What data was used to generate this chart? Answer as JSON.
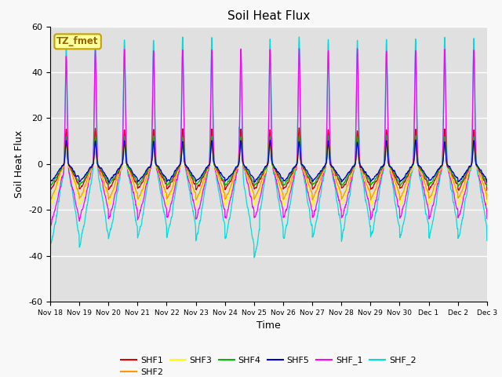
{
  "title": "Soil Heat Flux",
  "xlabel": "Time",
  "ylabel": "Soil Heat Flux",
  "ylim": [
    -60,
    60
  ],
  "bg_color": "#e0e0e0",
  "annotation_text": "TZ_fmet",
  "annotation_bg": "#ffffa0",
  "annotation_border": "#c8a000",
  "series": {
    "SHF1": {
      "color": "#dd0000"
    },
    "SHF2": {
      "color": "#ff9900"
    },
    "SHF3": {
      "color": "#ffff00"
    },
    "SHF4": {
      "color": "#00bb00"
    },
    "SHF5": {
      "color": "#0000cc"
    },
    "SHF_1": {
      "color": "#ff00ff"
    },
    "SHF_2": {
      "color": "#00dddd"
    }
  },
  "tick_labels": [
    "Nov 18",
    "Nov 19",
    "Nov 20",
    "Nov 21",
    "Nov 22",
    "Nov 23",
    "Nov 24",
    "Nov 25",
    "Nov 26",
    "Nov 27",
    "Nov 28",
    "Nov 29",
    "Nov 30",
    "Dec 1",
    "Dec 2",
    "Dec 3"
  ],
  "yticks": [
    -60,
    -40,
    -20,
    0,
    20,
    40,
    60
  ]
}
